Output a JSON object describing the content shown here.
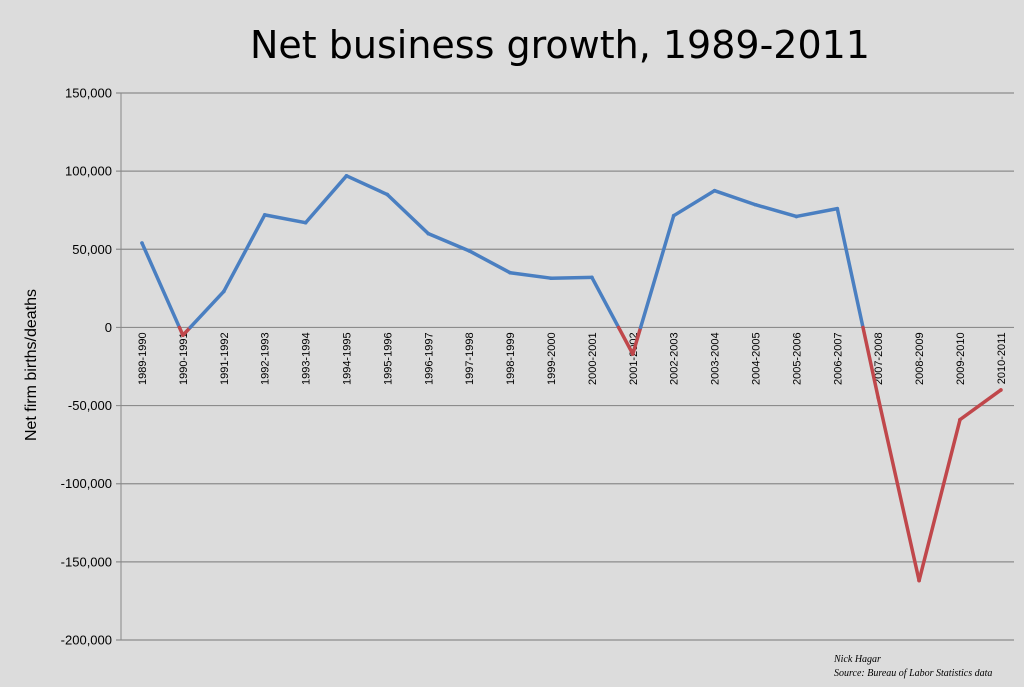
{
  "chart_data": {
    "type": "line",
    "title": "Net business growth, 1989-2011",
    "xlabel": "",
    "ylabel": "Net firm births/deaths",
    "ylim": [
      -200000,
      150000
    ],
    "yticks": [
      150000,
      100000,
      50000,
      0,
      -50000,
      -100000,
      -150000,
      -200000
    ],
    "ytick_labels": [
      "150,000",
      "100,000",
      "50,000",
      "0",
      "-50,000",
      "-100,000",
      "-150,000",
      "-200,000"
    ],
    "grid": true,
    "legend": "none",
    "positive_color": "#4a7fc1",
    "negative_color": "#c0474b",
    "categories": [
      "1989-1990",
      "1990-1991",
      "1991-1992",
      "1992-1993",
      "1993-1994",
      "1994-1995",
      "1995-1996",
      "1996-1997",
      "1997-1998",
      "1998-1999",
      "1999-2000",
      "2000-2001",
      "2001-2002",
      "2002-2003",
      "2003-2004",
      "2004-2005",
      "2005-2006",
      "2006-2007",
      "2007-2008",
      "2008-2009",
      "2009-2010",
      "2010-2011"
    ],
    "values": [
      54000,
      -5000,
      23000,
      72000,
      67000,
      97000,
      85000,
      60000,
      49000,
      35000,
      31500,
      32000,
      -17000,
      71500,
      87500,
      78500,
      71000,
      76000,
      -45000,
      -162000,
      -59000,
      -40000
    ]
  },
  "credit": {
    "author": "Nick Hagar",
    "source": "Source: Bureau of Labor Statistics data"
  }
}
